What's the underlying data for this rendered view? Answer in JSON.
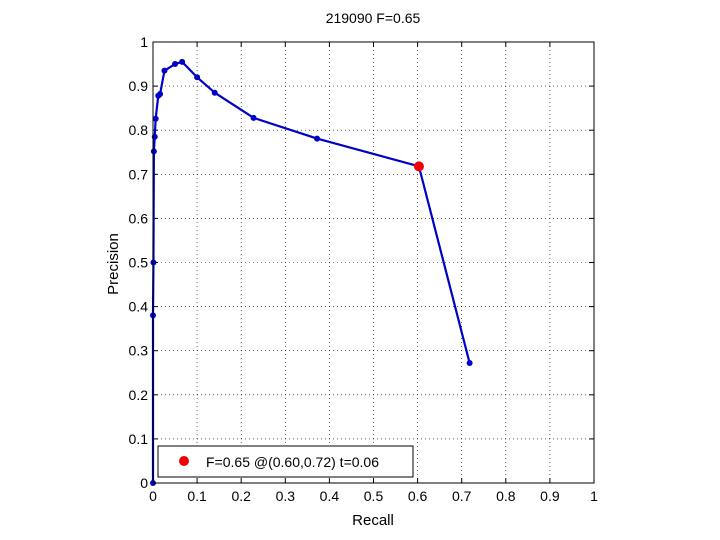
{
  "chart_data": {
    "type": "line",
    "title": "219090 F=0.65",
    "xlabel": "Recall",
    "ylabel": "Precision",
    "xlim": [
      0,
      1
    ],
    "ylim": [
      0,
      1
    ],
    "xticks": [
      "0",
      "0.1",
      "0.2",
      "0.3",
      "0.4",
      "0.5",
      "0.6",
      "0.7",
      "0.8",
      "0.9",
      "1"
    ],
    "yticks": [
      "0",
      "0.1",
      "0.2",
      "0.3",
      "0.4",
      "0.5",
      "0.6",
      "0.7",
      "0.8",
      "0.9",
      "1"
    ],
    "grid": true,
    "series": [
      {
        "color": "#0000c8",
        "points": [
          [
            0.0,
            0.0
          ],
          [
            0.0,
            0.38
          ],
          [
            0.001,
            0.5
          ],
          [
            0.002,
            0.752
          ],
          [
            0.004,
            0.785
          ],
          [
            0.006,
            0.826
          ],
          [
            0.012,
            0.878
          ],
          [
            0.016,
            0.882
          ],
          [
            0.026,
            0.935
          ],
          [
            0.05,
            0.95
          ],
          [
            0.066,
            0.955
          ],
          [
            0.1,
            0.92
          ],
          [
            0.14,
            0.885
          ],
          [
            0.228,
            0.828
          ],
          [
            0.372,
            0.781
          ],
          [
            0.603,
            0.718
          ],
          [
            0.718,
            0.272
          ]
        ]
      }
    ],
    "highlight": {
      "x": 0.603,
      "y": 0.718,
      "color": "#ee0000"
    },
    "legend": {
      "placement": "bottom-left",
      "label": "F=0.65 @(0.60,0.72) t=0.06"
    }
  }
}
